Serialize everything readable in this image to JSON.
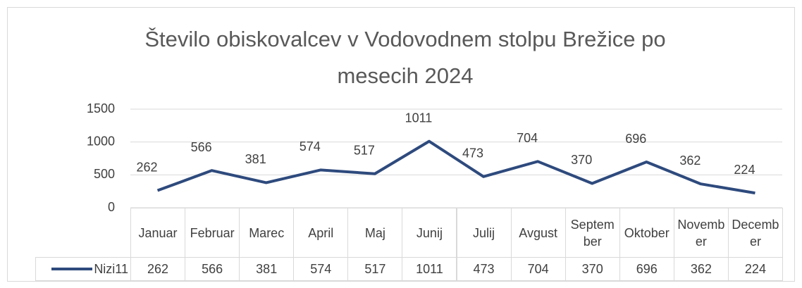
{
  "chart_data": {
    "type": "line",
    "title": "Število obiskovalcev v Vodovodnem stolpu Brežice po mesecih 2024",
    "categories": [
      "Januar",
      "Februar",
      "Marec",
      "April",
      "Maj",
      "Junij",
      "Julij",
      "Avgust",
      "September",
      "Oktober",
      "November",
      "December"
    ],
    "series": [
      {
        "name": "Nizi11",
        "color": "#2e4a7d",
        "values": [
          262,
          566,
          381,
          574,
          517,
          1011,
          473,
          704,
          370,
          696,
          362,
          224
        ]
      }
    ],
    "ylim": [
      0,
      1500
    ],
    "yticks": [
      0,
      500,
      1000,
      1500
    ],
    "grid": true
  }
}
